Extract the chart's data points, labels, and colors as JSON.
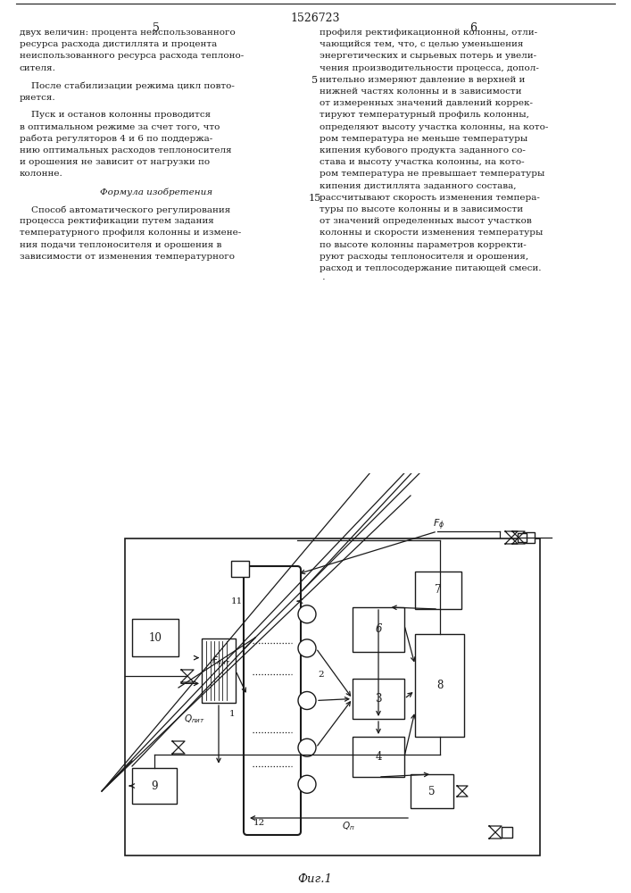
{
  "page_title": "1526723",
  "background_color": "#ffffff",
  "lc": "#1a1a1a",
  "tc": "#1a1a1a",
  "left_col_num": "5",
  "right_col_num": "6",
  "left_lines": [
    [
      "двух величин: процента неиспользованного",
      "normal"
    ],
    [
      "ресурса расхода дистиллята и процента",
      "normal"
    ],
    [
      "неиспользованного ресурса расхода теплоно-",
      "normal"
    ],
    [
      "сителя.",
      "normal"
    ],
    [
      "",
      "normal"
    ],
    [
      "    После стабилизации режима цикл повто-",
      "normal"
    ],
    [
      "ряется.",
      "normal"
    ],
    [
      "",
      "normal"
    ],
    [
      "    Пуск и останов колонны проводится",
      "normal"
    ],
    [
      "в оптимальном режиме за счет того, что",
      "normal"
    ],
    [
      "работа регуляторов 4 и 6 по поддержа-",
      "normal"
    ],
    [
      "нию оптимальных расходов теплоносителя",
      "normal"
    ],
    [
      "и орошения не зависит от нагрузки по",
      "normal"
    ],
    [
      "колонне.",
      "normal"
    ],
    [
      "",
      "normal"
    ],
    [
      "Формула изобретения",
      "italic_center"
    ],
    [
      "",
      "normal"
    ],
    [
      "    Способ автоматического регулирования",
      "normal"
    ],
    [
      "процесса ректификации путем задания",
      "normal"
    ],
    [
      "температурного профиля колонны и измене-",
      "normal"
    ],
    [
      "ния подачи теплоносителя и орошения в",
      "normal"
    ],
    [
      "зависимости от изменения температурного",
      "normal"
    ]
  ],
  "right_lines": [
    [
      "профиля ректификационной колонны, отли-",
      "normal"
    ],
    [
      "чающийся тем, что, с целью уменьшения",
      "normal"
    ],
    [
      "энергетических и сырьевых потерь и увели-",
      "normal"
    ],
    [
      "чения производительности процесса, допол-",
      "normal"
    ],
    [
      "нительно измеряют давление в верхней и",
      "normal"
    ],
    [
      "нижней частях колонны и в зависимости",
      "normal"
    ],
    [
      "от измеренных значений давлений коррек-",
      "normal"
    ],
    [
      "тируют температурный профиль колонны,",
      "normal"
    ],
    [
      "определяют высоту участка колонны, на кото-",
      "normal"
    ],
    [
      "ром температура не меньше температуры",
      "normal"
    ],
    [
      "кипения кубового продукта заданного со-",
      "normal"
    ],
    [
      "става и высоту участка колонны, на кото-",
      "normal"
    ],
    [
      "ром температура не превышает температуры",
      "normal"
    ],
    [
      "кипения дистиллята заданного состава,",
      "normal"
    ],
    [
      "рассчитывают скорость изменения темпера-",
      "normal"
    ],
    [
      "туры по высоте колонны и в зависимости",
      "normal"
    ],
    [
      "от значений определенных высот участков",
      "normal"
    ],
    [
      "колонны и скорости изменения температуры",
      "normal"
    ],
    [
      "по высоте колонны параметров корректи-",
      "normal"
    ],
    [
      "руют расходы теплоносителя и орошения,",
      "normal"
    ],
    [
      "расход и теплосодержание питающей смеси.",
      "normal"
    ],
    [
      " ·",
      "normal"
    ]
  ],
  "right_line_nums": {
    "5": 4,
    "15": 14
  },
  "fig_label": "Фиг.1"
}
